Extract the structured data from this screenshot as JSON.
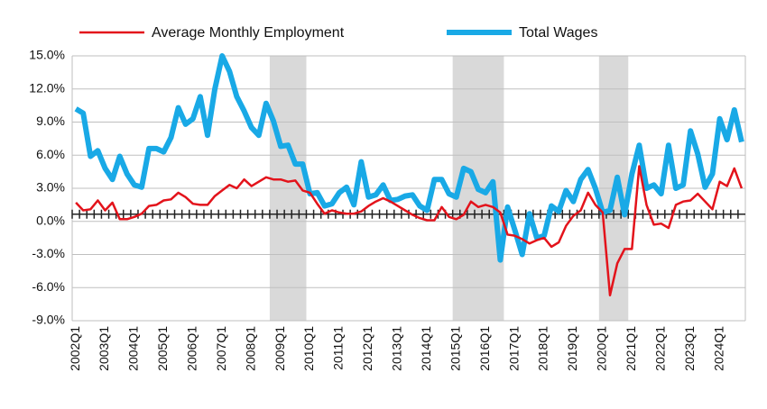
{
  "chart_data": {
    "type": "line",
    "categories": [
      "2002Q1",
      null,
      null,
      null,
      "2003Q1",
      null,
      null,
      null,
      "2004Q1",
      null,
      null,
      null,
      "2005Q1",
      null,
      null,
      null,
      "2006Q1",
      null,
      null,
      null,
      "2007Q1",
      null,
      null,
      null,
      "2008Q1",
      null,
      null,
      null,
      "2009Q1",
      null,
      null,
      null,
      "2010Q1",
      null,
      null,
      null,
      "2011Q1",
      null,
      null,
      null,
      "2012Q1",
      null,
      null,
      null,
      "2013Q1",
      null,
      null,
      null,
      "2014Q1",
      null,
      null,
      null,
      "2015Q1",
      null,
      null,
      null,
      "2016Q1",
      null,
      null,
      null,
      "2017Q1",
      null,
      null,
      null,
      "2018Q1",
      null,
      null,
      null,
      "2019Q1",
      null,
      null,
      null,
      "2020Q1",
      null,
      null,
      null,
      "2021Q1",
      null,
      null,
      null,
      "2022Q1",
      null,
      null,
      null,
      "2023Q1",
      null,
      null,
      null,
      "2024Q1",
      null,
      null,
      null
    ],
    "series": [
      {
        "name": "Average Monthly Employment",
        "color": "#e3131b",
        "width": 2.5,
        "values": [
          1.7,
          1.0,
          1.1,
          1.9,
          1.0,
          1.7,
          0.2,
          0.2,
          0.4,
          0.7,
          1.4,
          1.5,
          1.9,
          2.0,
          2.6,
          2.2,
          1.6,
          1.5,
          1.5,
          2.3,
          2.8,
          3.3,
          3.0,
          3.8,
          3.2,
          3.6,
          4.0,
          3.8,
          3.8,
          3.6,
          3.7,
          2.8,
          2.6,
          1.6,
          0.7,
          1.0,
          0.8,
          0.7,
          0.7,
          0.9,
          1.4,
          1.8,
          2.1,
          1.8,
          1.4,
          1.0,
          0.6,
          0.3,
          0.1,
          0.1,
          1.3,
          0.4,
          0.2,
          0.6,
          1.8,
          1.3,
          1.5,
          1.3,
          0.8,
          -1.2,
          -1.3,
          -1.6,
          -2.0,
          -1.7,
          -1.5,
          -2.3,
          -1.9,
          -0.4,
          0.5,
          1.0,
          2.6,
          1.5,
          0.8,
          -6.7,
          -3.8,
          -2.5,
          -2.5,
          5.0,
          1.5,
          -0.3,
          -0.2,
          -0.6,
          1.5,
          1.8,
          1.9,
          2.5,
          1.8,
          1.1,
          3.6,
          3.2,
          4.8,
          3.0
        ]
      },
      {
        "name": "Total Wages",
        "color": "#19a9e6",
        "width": 6,
        "values": [
          10.2,
          9.8,
          5.9,
          6.4,
          4.8,
          3.8,
          5.9,
          4.3,
          3.3,
          3.1,
          6.6,
          6.6,
          6.3,
          7.6,
          10.3,
          8.8,
          9.3,
          11.3,
          7.8,
          12.0,
          15.0,
          13.6,
          11.3,
          10.0,
          8.5,
          7.8,
          10.7,
          9.1,
          6.8,
          6.9,
          5.2,
          5.2,
          2.5,
          2.6,
          1.4,
          1.6,
          2.6,
          3.1,
          1.5,
          5.4,
          2.2,
          2.4,
          3.3,
          1.9,
          2.0,
          2.3,
          2.4,
          1.4,
          1.0,
          3.8,
          3.8,
          2.5,
          2.2,
          4.8,
          4.5,
          2.9,
          2.6,
          3.6,
          -3.5,
          1.3,
          -0.8,
          -3.0,
          0.7,
          -1.5,
          -1.3,
          1.4,
          0.9,
          2.8,
          1.8,
          3.8,
          4.7,
          3.0,
          0.8,
          1.0,
          4.0,
          0.6,
          4.3,
          6.9,
          3.0,
          3.3,
          2.5,
          6.9,
          3.0,
          3.3,
          8.2,
          6.1,
          3.1,
          4.3,
          9.3,
          7.4,
          10.1,
          7.2
        ]
      }
    ],
    "shaded_ranges": [
      [
        27,
        32
      ],
      [
        52,
        59
      ],
      [
        72,
        76
      ]
    ],
    "ylim": [
      -9,
      15
    ],
    "yticks": [
      {
        "value": -9,
        "label": "-9.0%"
      },
      {
        "value": -6,
        "label": "-6.0%"
      },
      {
        "value": -3,
        "label": "-3.0%"
      },
      {
        "value": 0,
        "label": "0.0%"
      },
      {
        "value": 3,
        "label": "3.0%"
      },
      {
        "value": 6,
        "label": "6.0%"
      },
      {
        "value": 9,
        "label": "9.0%"
      },
      {
        "value": 12,
        "label": "12.0%"
      },
      {
        "value": 15,
        "label": "15.0%"
      }
    ],
    "grid": true,
    "legend": "top"
  }
}
